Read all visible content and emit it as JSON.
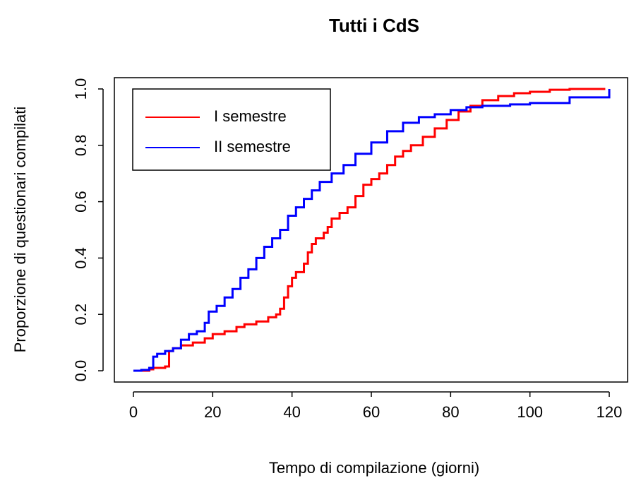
{
  "chart_data": {
    "type": "line",
    "title": "Tutti i CdS",
    "x_label": "Tempo di compilazione (giorni)",
    "y_label": "Proporzione di questionari compilati",
    "xlim": [
      -4.8,
      124.8
    ],
    "ylim": [
      -0.04,
      1.04
    ],
    "xticks": [
      0,
      20,
      40,
      60,
      80,
      100,
      120
    ],
    "yticks": [
      {
        "value": 0,
        "label": "0.0"
      },
      0.2,
      0.4,
      0.6,
      0.8,
      {
        "value": 1,
        "label": "1.0"
      }
    ],
    "drawstyle": "steps-post",
    "legend": "topleft",
    "series": [
      {
        "name": "I semestre",
        "color": "#ff0000",
        "x": [
          0,
          4,
          5,
          8,
          9,
          10,
          12,
          15,
          18,
          20,
          23,
          26,
          28,
          31,
          34,
          36,
          37,
          38,
          39,
          40,
          41,
          43,
          44,
          45,
          46,
          48,
          49,
          50,
          52,
          54,
          56,
          58,
          60,
          62,
          64,
          66,
          68,
          70,
          73,
          76,
          79,
          82,
          85,
          88,
          92,
          96,
          100,
          105,
          110,
          119
        ],
        "values": [
          0,
          0.005,
          0.01,
          0.015,
          0.07,
          0.08,
          0.09,
          0.1,
          0.115,
          0.13,
          0.14,
          0.155,
          0.165,
          0.175,
          0.19,
          0.2,
          0.22,
          0.26,
          0.3,
          0.33,
          0.35,
          0.38,
          0.42,
          0.45,
          0.47,
          0.49,
          0.51,
          0.54,
          0.56,
          0.58,
          0.62,
          0.66,
          0.68,
          0.7,
          0.73,
          0.76,
          0.78,
          0.8,
          0.83,
          0.86,
          0.89,
          0.92,
          0.94,
          0.96,
          0.975,
          0.985,
          0.99,
          0.997,
          1,
          1
        ]
      },
      {
        "name": "II semestre",
        "color": "#0000ff",
        "x": [
          0,
          2,
          4,
          5,
          6,
          8,
          10,
          12,
          14,
          16,
          18,
          19,
          21,
          23,
          25,
          27,
          29,
          31,
          33,
          35,
          37,
          39,
          41,
          43,
          45,
          47,
          50,
          53,
          56,
          60,
          64,
          68,
          72,
          76,
          80,
          84,
          88,
          95,
          100,
          110,
          120
        ],
        "values": [
          0,
          0.003,
          0.01,
          0.05,
          0.06,
          0.07,
          0.08,
          0.11,
          0.13,
          0.14,
          0.17,
          0.21,
          0.23,
          0.26,
          0.29,
          0.33,
          0.36,
          0.4,
          0.44,
          0.47,
          0.5,
          0.55,
          0.58,
          0.61,
          0.64,
          0.67,
          0.7,
          0.73,
          0.77,
          0.81,
          0.85,
          0.88,
          0.9,
          0.91,
          0.925,
          0.935,
          0.94,
          0.945,
          0.95,
          0.97,
          1
        ]
      }
    ]
  }
}
